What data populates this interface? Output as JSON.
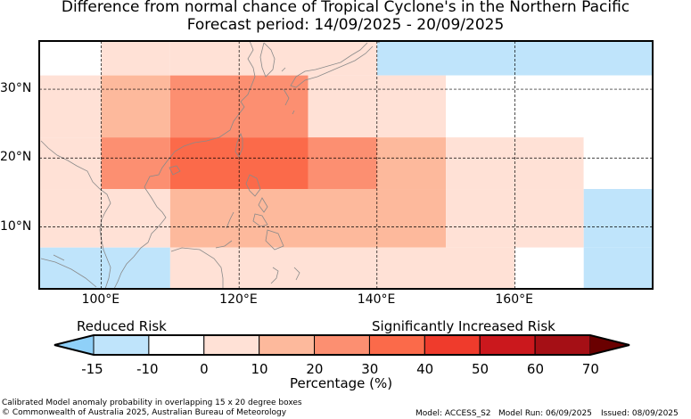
{
  "title": {
    "line1": "Difference from normal chance of Tropical Cyclone's in the Northern Pacific",
    "line2": "Forecast period: 14/09/2025 - 20/09/2025"
  },
  "map": {
    "lon_range": [
      91,
      180
    ],
    "lat_range": [
      1,
      37
    ],
    "lon_ticks": [
      {
        "value": 100,
        "label": "100°E"
      },
      {
        "value": 120,
        "label": "120°E"
      },
      {
        "value": 140,
        "label": "140°E"
      },
      {
        "value": 160,
        "label": "160°E"
      }
    ],
    "lat_ticks": [
      {
        "value": 30,
        "label": "30°N"
      },
      {
        "value": 20,
        "label": "20°N"
      },
      {
        "value": 10,
        "label": "10°N"
      }
    ],
    "grid": "dashed",
    "cells": [
      {
        "lon": [
          91,
          100
        ],
        "lat": [
          32,
          37
        ],
        "pct": -10
      },
      {
        "lon": [
          100,
          110
        ],
        "lat": [
          32,
          37
        ],
        "pct": 0
      },
      {
        "lon": [
          110,
          140
        ],
        "lat": [
          32,
          37
        ],
        "pct": 5
      },
      {
        "lon": [
          140,
          180
        ],
        "lat": [
          32,
          37
        ],
        "pct": -15
      },
      {
        "lon": [
          91,
          100
        ],
        "lat": [
          23,
          32
        ],
        "pct": 0
      },
      {
        "lon": [
          100,
          110
        ],
        "lat": [
          23,
          32
        ],
        "pct": 15
      },
      {
        "lon": [
          110,
          130
        ],
        "lat": [
          23,
          32
        ],
        "pct": 25
      },
      {
        "lon": [
          130,
          140
        ],
        "lat": [
          23,
          32
        ],
        "pct": 5
      },
      {
        "lon": [
          140,
          150
        ],
        "lat": [
          23,
          32
        ],
        "pct": 0
      },
      {
        "lon": [
          150,
          180
        ],
        "lat": [
          23,
          32
        ],
        "pct": -10
      },
      {
        "lon": [
          91,
          100
        ],
        "lat": [
          15.5,
          23
        ],
        "pct": 5
      },
      {
        "lon": [
          100,
          110
        ],
        "lat": [
          15.5,
          23
        ],
        "pct": 25
      },
      {
        "lon": [
          110,
          130
        ],
        "lat": [
          15.5,
          23
        ],
        "pct": 35
      },
      {
        "lon": [
          130,
          140
        ],
        "lat": [
          15.5,
          23
        ],
        "pct": 25
      },
      {
        "lon": [
          140,
          150
        ],
        "lat": [
          15.5,
          23
        ],
        "pct": 15
      },
      {
        "lon": [
          150,
          160
        ],
        "lat": [
          15.5,
          23
        ],
        "pct": 5
      },
      {
        "lon": [
          160,
          170
        ],
        "lat": [
          15.5,
          23
        ],
        "pct": 0
      },
      {
        "lon": [
          170,
          180
        ],
        "lat": [
          15.5,
          23
        ],
        "pct": -10
      },
      {
        "lon": [
          91,
          100
        ],
        "lat": [
          7,
          15.5
        ],
        "pct": 0
      },
      {
        "lon": [
          100,
          110
        ],
        "lat": [
          7,
          15.5
        ],
        "pct": 5
      },
      {
        "lon": [
          110,
          150
        ],
        "lat": [
          7,
          15.5
        ],
        "pct": 15
      },
      {
        "lon": [
          150,
          160
        ],
        "lat": [
          7,
          15.5
        ],
        "pct": 5
      },
      {
        "lon": [
          160,
          170
        ],
        "lat": [
          7,
          15.5
        ],
        "pct": 0
      },
      {
        "lon": [
          170,
          180
        ],
        "lat": [
          7,
          15.5
        ],
        "pct": -15
      },
      {
        "lon": [
          91,
          110
        ],
        "lat": [
          1,
          7
        ],
        "pct": -15
      },
      {
        "lon": [
          110,
          120
        ],
        "lat": [
          1,
          7
        ],
        "pct": 0
      },
      {
        "lon": [
          120,
          160
        ],
        "lat": [
          1,
          7
        ],
        "pct": 5
      },
      {
        "lon": [
          160,
          170
        ],
        "lat": [
          1,
          7
        ],
        "pct": -10
      },
      {
        "lon": [
          170,
          180
        ],
        "lat": [
          1,
          7
        ],
        "pct": -15
      }
    ]
  },
  "colorbar": {
    "reduced_label": "Reduced Risk",
    "increased_label": "Significantly Increased Risk",
    "unit_label": "Percentage (%)",
    "ticks": [
      "-15",
      "-10",
      "0",
      "10",
      "20",
      "30",
      "40",
      "50",
      "60",
      "70"
    ],
    "under_color": "#8fd0f8",
    "over_color": "#6a0000",
    "colors": [
      "#bfe4fb",
      "#ffffff",
      "#ffe1d6",
      "#fdb99c",
      "#fc8f71",
      "#fb6a4a",
      "#ef3b2c",
      "#cb181d",
      "#a50f15"
    ]
  },
  "footer": {
    "line1": "Calibrated Model anomaly probability in overlapping 15 x 20 degree boxes",
    "line2": "© Commonwealth of Australia 2025, Australian Bureau of Meteorology",
    "model": "Model: ACCESS_S2",
    "model_run": "Model Run: 06/09/2025",
    "issued": "Issued: 08/09/2025"
  }
}
